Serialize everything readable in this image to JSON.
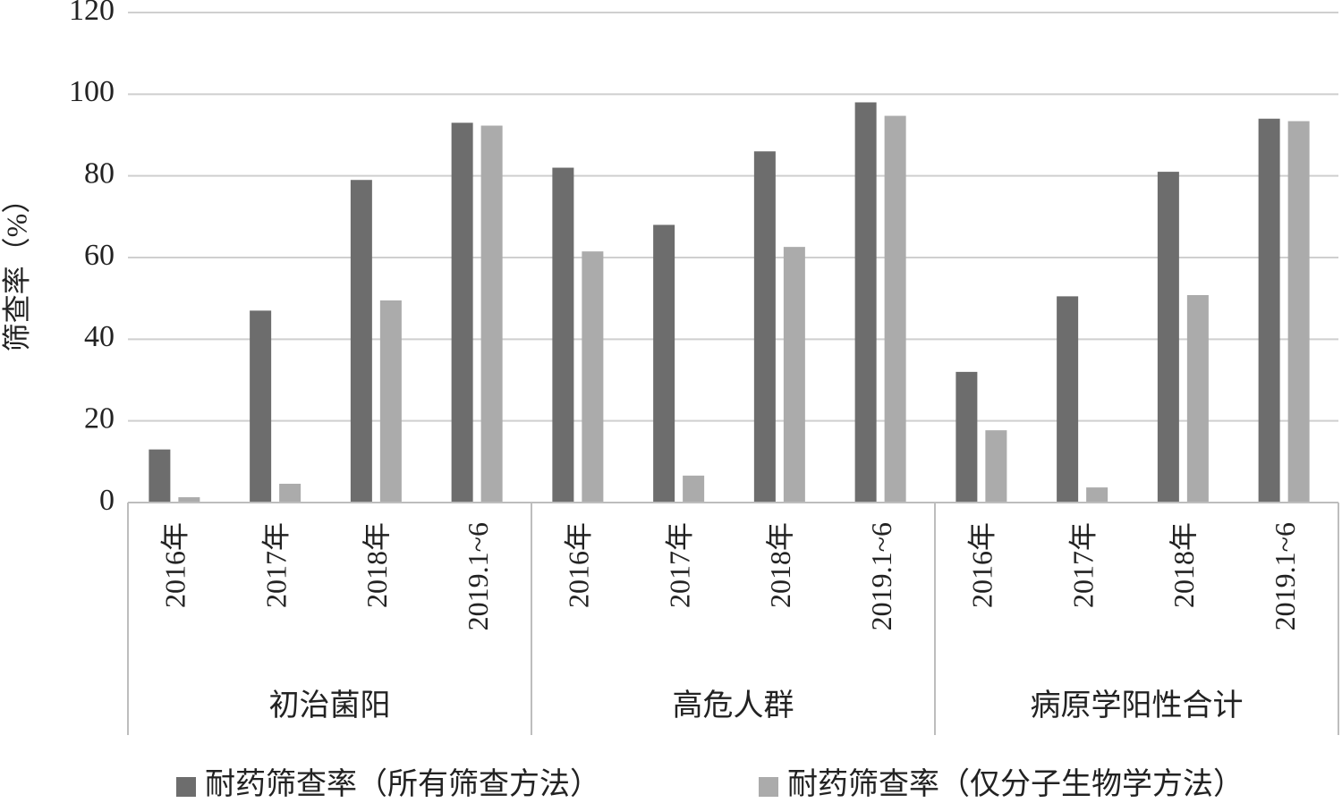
{
  "chart_data": {
    "type": "bar",
    "y_label": "筛查率（%）",
    "categories": [
      "2016年",
      "2017年",
      "2018年",
      "2019.1~6",
      "2016年",
      "2017年",
      "2018年",
      "2019.1~6",
      "2016年",
      "2017年",
      "2018年",
      "2019.1~6"
    ],
    "category_groups": [
      "初治菌阳",
      "高危人群",
      "病原学阳性合计"
    ],
    "series": [
      {
        "name": "耐药筛查率（所有筛查方法）",
        "color": "#6d6d6d",
        "values": [
          13,
          47,
          79,
          93,
          82,
          68,
          86,
          98,
          32,
          50.5,
          81,
          94
        ]
      },
      {
        "name": "耐药筛查率（仅分子生物学方法）",
        "color": "#ababab",
        "values": [
          1.3,
          4.6,
          49.5,
          92.3,
          61.5,
          6.6,
          62.6,
          94.7,
          17.7,
          3.7,
          50.8,
          93.4
        ]
      }
    ],
    "ylim": [
      0,
      120
    ],
    "yticks": [
      0,
      20,
      40,
      60,
      80,
      100,
      120
    ],
    "grid": true,
    "legend": "bottom"
  }
}
